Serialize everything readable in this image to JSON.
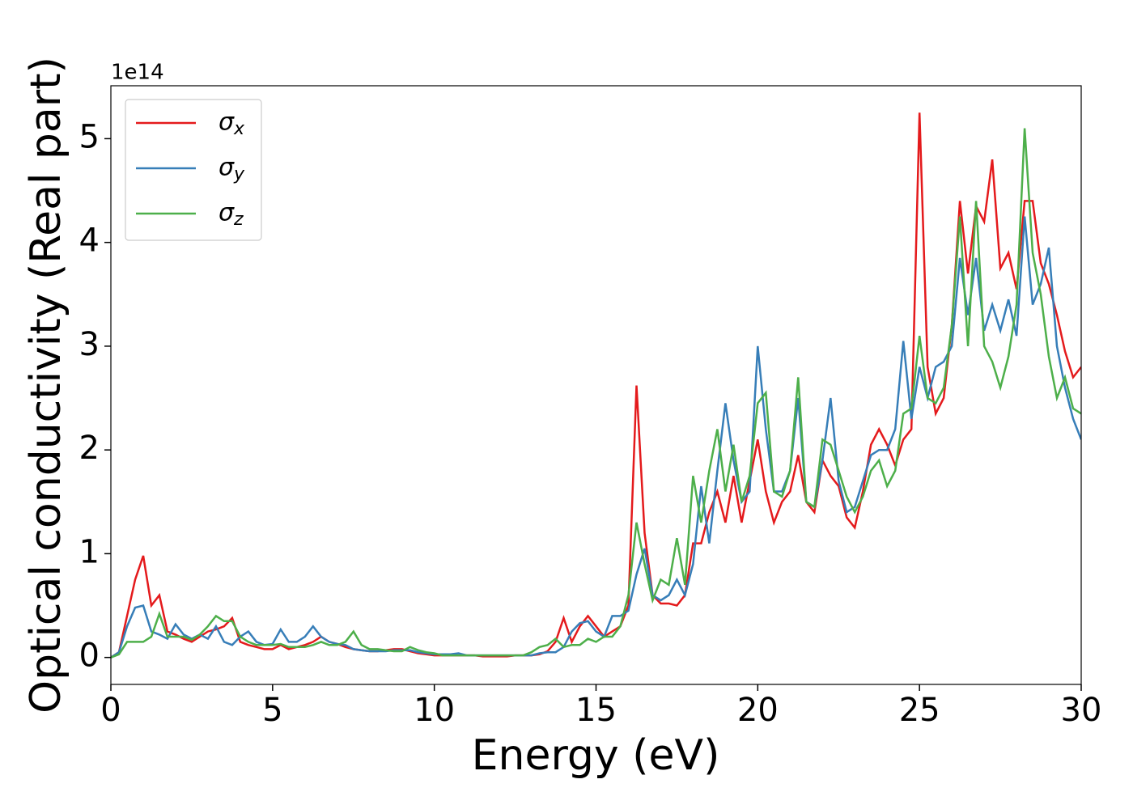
{
  "chart_data": {
    "type": "line",
    "x_label": "Energy (eV)",
    "y_label": "Optical conductivity (Real part)",
    "y_offset_text": "1e14",
    "xlim": [
      0,
      30
    ],
    "ylim": [
      -0.26,
      5.51
    ],
    "xticks": [
      0,
      5,
      10,
      15,
      20,
      25,
      30
    ],
    "yticks": [
      0,
      1,
      2,
      3,
      4,
      5
    ],
    "grid": false,
    "legend": "upper left",
    "x": [
      0,
      0.25,
      0.5,
      0.75,
      1,
      1.25,
      1.5,
      1.75,
      2,
      2.25,
      2.5,
      2.75,
      3,
      3.25,
      3.5,
      3.75,
      4,
      4.25,
      4.5,
      4.75,
      5,
      5.25,
      5.5,
      5.75,
      6,
      6.25,
      6.5,
      6.75,
      7,
      7.25,
      7.5,
      7.75,
      8,
      8.25,
      8.5,
      8.75,
      9,
      9.25,
      9.5,
      9.75,
      10,
      10.25,
      10.5,
      10.75,
      11,
      11.25,
      11.5,
      11.75,
      12,
      12.25,
      12.5,
      12.75,
      13,
      13.25,
      13.5,
      13.75,
      14,
      14.25,
      14.5,
      14.75,
      15,
      15.25,
      15.5,
      15.75,
      16,
      16.25,
      16.5,
      16.75,
      17,
      17.25,
      17.5,
      17.75,
      18,
      18.25,
      18.5,
      18.75,
      19,
      19.25,
      19.5,
      19.75,
      20,
      20.25,
      20.5,
      20.75,
      21,
      21.25,
      21.5,
      21.75,
      22,
      22.25,
      22.5,
      22.75,
      23,
      23.25,
      23.5,
      23.75,
      24,
      24.25,
      24.5,
      24.75,
      25,
      25.25,
      25.5,
      25.75,
      26,
      26.25,
      26.5,
      26.75,
      27,
      27.25,
      27.5,
      27.75,
      28,
      28.25,
      28.5,
      28.75,
      29,
      29.25,
      29.5,
      29.75,
      30
    ],
    "series": [
      {
        "name": "σx",
        "color": "#e41a1c",
        "values": [
          0,
          0.05,
          0.4,
          0.75,
          0.98,
          0.5,
          0.6,
          0.25,
          0.22,
          0.18,
          0.15,
          0.2,
          0.25,
          0.27,
          0.3,
          0.38,
          0.15,
          0.12,
          0.1,
          0.08,
          0.08,
          0.12,
          0.08,
          0.1,
          0.12,
          0.15,
          0.2,
          0.15,
          0.13,
          0.1,
          0.08,
          0.07,
          0.06,
          0.06,
          0.07,
          0.08,
          0.08,
          0.06,
          0.04,
          0.03,
          0.02,
          0.02,
          0.02,
          0.02,
          0.02,
          0.02,
          0.01,
          0.01,
          0.01,
          0.01,
          0.02,
          0.02,
          0.02,
          0.03,
          0.06,
          0.15,
          0.38,
          0.15,
          0.3,
          0.4,
          0.3,
          0.2,
          0.25,
          0.3,
          0.5,
          2.62,
          1.2,
          0.6,
          0.52,
          0.52,
          0.5,
          0.6,
          1.1,
          1.1,
          1.4,
          1.6,
          1.3,
          1.75,
          1.3,
          1.7,
          2.1,
          1.6,
          1.3,
          1.5,
          1.6,
          1.95,
          1.5,
          1.4,
          1.9,
          1.75,
          1.65,
          1.35,
          1.25,
          1.6,
          2.05,
          2.2,
          2.05,
          1.85,
          2.1,
          2.2,
          5.25,
          2.8,
          2.35,
          2.5,
          3.2,
          4.4,
          3.7,
          4.35,
          4.2,
          4.8,
          3.75,
          3.9,
          3.55,
          4.4,
          4.4,
          3.8,
          3.6,
          3.3,
          2.95,
          2.7,
          2.8
        ]
      },
      {
        "name": "σy",
        "color": "#377eb8",
        "values": [
          0,
          0.05,
          0.3,
          0.48,
          0.5,
          0.25,
          0.22,
          0.18,
          0.32,
          0.22,
          0.18,
          0.22,
          0.18,
          0.3,
          0.15,
          0.12,
          0.2,
          0.25,
          0.15,
          0.12,
          0.13,
          0.27,
          0.15,
          0.15,
          0.2,
          0.3,
          0.2,
          0.15,
          0.13,
          0.12,
          0.08,
          0.07,
          0.06,
          0.06,
          0.06,
          0.07,
          0.07,
          0.07,
          0.05,
          0.04,
          0.03,
          0.03,
          0.03,
          0.04,
          0.02,
          0.02,
          0.02,
          0.02,
          0.02,
          0.02,
          0.02,
          0.02,
          0.02,
          0.04,
          0.05,
          0.05,
          0.1,
          0.25,
          0.33,
          0.35,
          0.25,
          0.2,
          0.4,
          0.4,
          0.45,
          0.8,
          1.05,
          0.6,
          0.55,
          0.6,
          0.75,
          0.6,
          0.9,
          1.65,
          1.1,
          1.8,
          2.45,
          1.9,
          1.5,
          1.6,
          3.0,
          2.2,
          1.6,
          1.6,
          1.8,
          2.5,
          1.5,
          1.45,
          1.9,
          2.5,
          1.7,
          1.4,
          1.45,
          1.7,
          1.95,
          2.0,
          2.0,
          2.2,
          3.05,
          2.3,
          2.8,
          2.5,
          2.8,
          2.85,
          3.0,
          3.85,
          3.3,
          3.85,
          3.15,
          3.4,
          3.15,
          3.45,
          3.1,
          4.25,
          3.4,
          3.6,
          3.95,
          3.0,
          2.6,
          2.3,
          2.1
        ]
      },
      {
        "name": "σz",
        "color": "#4daf4a",
        "values": [
          0,
          0.03,
          0.15,
          0.15,
          0.15,
          0.2,
          0.42,
          0.2,
          0.2,
          0.2,
          0.17,
          0.22,
          0.3,
          0.4,
          0.35,
          0.35,
          0.2,
          0.15,
          0.12,
          0.12,
          0.12,
          0.13,
          0.1,
          0.1,
          0.1,
          0.12,
          0.15,
          0.12,
          0.12,
          0.15,
          0.25,
          0.12,
          0.08,
          0.08,
          0.07,
          0.06,
          0.06,
          0.1,
          0.07,
          0.05,
          0.04,
          0.02,
          0.02,
          0.02,
          0.02,
          0.02,
          0.02,
          0.02,
          0.02,
          0.02,
          0.02,
          0.02,
          0.05,
          0.1,
          0.12,
          0.18,
          0.1,
          0.12,
          0.12,
          0.18,
          0.15,
          0.2,
          0.2,
          0.3,
          0.6,
          1.3,
          0.9,
          0.55,
          0.75,
          0.7,
          1.15,
          0.7,
          1.75,
          1.3,
          1.8,
          2.2,
          1.6,
          2.05,
          1.5,
          1.75,
          2.45,
          2.55,
          1.6,
          1.55,
          1.8,
          2.7,
          1.5,
          1.45,
          2.1,
          2.05,
          1.8,
          1.55,
          1.4,
          1.55,
          1.8,
          1.9,
          1.65,
          1.8,
          2.35,
          2.4,
          3.1,
          2.5,
          2.45,
          2.6,
          3.2,
          4.25,
          3.0,
          4.4,
          3.0,
          2.85,
          2.6,
          2.9,
          3.4,
          5.1,
          3.9,
          3.5,
          2.9,
          2.5,
          2.7,
          2.4,
          2.35
        ]
      }
    ]
  }
}
